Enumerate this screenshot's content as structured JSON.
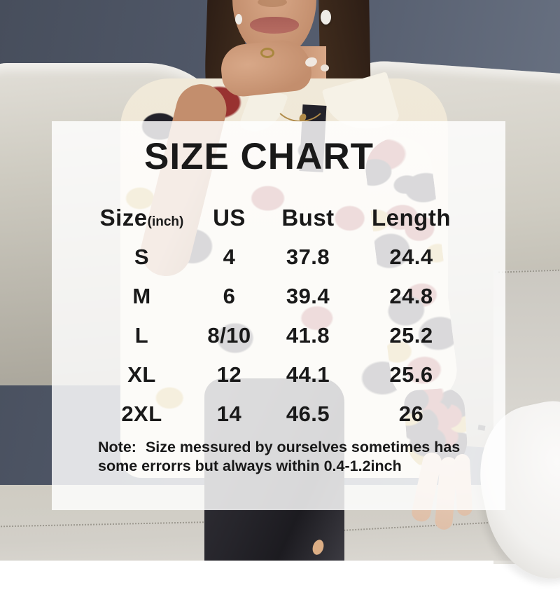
{
  "chart_data": {
    "type": "table",
    "title": "SIZE CHART",
    "unit_note": "(inch)",
    "columns": [
      "Size",
      "US",
      "Bust",
      "Length"
    ],
    "rows": [
      {
        "size": "S",
        "us": "4",
        "bust": "37.8",
        "length": "24.4"
      },
      {
        "size": "M",
        "us": "6",
        "bust": "39.4",
        "length": "24.8"
      },
      {
        "size": "L",
        "us": "8/10",
        "bust": "41.8",
        "length": "25.2"
      },
      {
        "size": "XL",
        "us": "12",
        "bust": "44.1",
        "length": "25.6"
      },
      {
        "size": "2XL",
        "us": "14",
        "bust": "46.5",
        "length": "26"
      }
    ],
    "note_label": "Note:",
    "note_text": "Size messured by ourselves sometimes has some errorrs but always within 0.4-1.2inch"
  },
  "panel": {
    "background": "rgba(255,255,255,0.83)",
    "text_color": "#191919"
  },
  "photo": {
    "scene": "woman wearing white chain-print button-up blouse and black pants, hand under chin, seated on white leather couch against blue-gray wall",
    "colors": {
      "wall": "#535b6c",
      "wall_dark": "#474e5c",
      "wall_light": "#6e7787",
      "couch": "#cfccc2",
      "couch_light": "#e2dfd8",
      "couch_dark": "#a8a499",
      "pillow": "#f2f1ef",
      "stitch": "#8f8b82",
      "hair": "#2c1d15",
      "hair_light": "#45301f",
      "skin": "#c38e6d",
      "skin_light": "#d8a888",
      "skin_shadow": "#a5744f",
      "lips": "#b66c62",
      "pearl": "#efece7",
      "gold": "#b08a48",
      "blouse": "#f0e9d9",
      "print_black": "#23222a",
      "print_red": "#983230",
      "print_gold": "#c5a03c",
      "pants": "#26252b"
    }
  }
}
